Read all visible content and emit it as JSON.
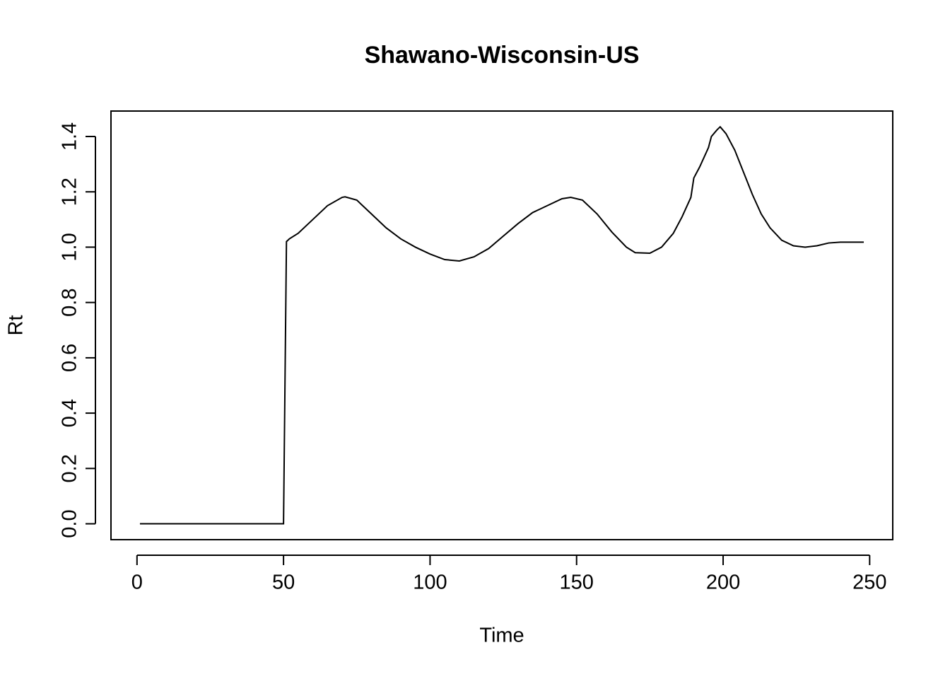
{
  "chart_data": {
    "type": "line",
    "title": "Shawano-Wisconsin-US",
    "x_label": "Time",
    "y_label": "Rt",
    "series": [
      {
        "name": "Rt",
        "color": "#000000",
        "x": [
          1,
          50,
          51,
          52,
          55,
          60,
          65,
          70,
          71,
          75,
          80,
          85,
          90,
          95,
          100,
          105,
          110,
          115,
          120,
          125,
          130,
          135,
          140,
          145,
          148,
          152,
          157,
          162,
          167,
          170,
          175,
          179,
          183,
          186,
          189,
          190,
          192,
          195,
          196,
          198,
          199,
          201,
          204,
          207,
          210,
          213,
          216,
          220,
          224,
          228,
          232,
          236,
          240,
          248
        ],
        "values": [
          0,
          0,
          1.02,
          1.03,
          1.05,
          1.1,
          1.15,
          1.18,
          1.182,
          1.17,
          1.12,
          1.07,
          1.03,
          1.0,
          0.975,
          0.955,
          0.95,
          0.965,
          0.995,
          1.04,
          1.085,
          1.125,
          1.15,
          1.175,
          1.18,
          1.17,
          1.12,
          1.055,
          1.0,
          0.98,
          0.978,
          1.0,
          1.05,
          1.11,
          1.18,
          1.25,
          1.29,
          1.36,
          1.4,
          1.425,
          1.435,
          1.41,
          1.35,
          1.27,
          1.19,
          1.12,
          1.07,
          1.025,
          1.005,
          1.0,
          1.005,
          1.015,
          1.018,
          1.018
        ]
      }
    ],
    "xlim": [
      -8.88,
      257.88
    ],
    "xticks": [
      0,
      50,
      100,
      150,
      200,
      250
    ],
    "ylim": [
      -0.0574,
      1.492
    ],
    "yticks": [
      {
        "value": 0,
        "label": "0.0"
      },
      0.2,
      0.4,
      0.6,
      0.8,
      {
        "value": 1,
        "label": "1.0"
      },
      1.2,
      1.4
    ]
  }
}
